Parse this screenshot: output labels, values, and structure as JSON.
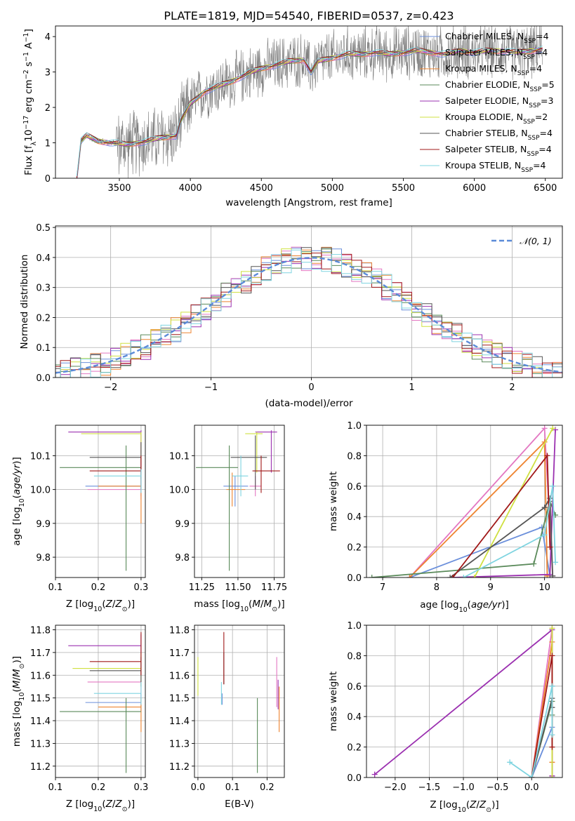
{
  "figure_title": "PLATE=1819, MJD=54540, FIBERID=0537, z=0.423",
  "colors": {
    "Chabrier MILES": "#6b8fdb",
    "Salpeter MILES": "#e377c2",
    "Kroupa MILES": "#ee8430",
    "Chabrier ELODIE": "#5a8a5a",
    "Salpeter ELODIE": "#9b30b0",
    "Kroupa ELODIE": "#cfe040",
    "Chabrier STELIB": "#555555",
    "Salpeter STELIB": "#a01818",
    "Kroupa STELIB": "#7fd4e0",
    "data": "#7a7a7a",
    "normal": "#5b8bd8"
  },
  "legend_top": [
    {
      "name": "Chabrier MILES",
      "label": "Chabrier MILES, N",
      "sub": "SSP",
      "tail": "=4"
    },
    {
      "name": "Salpeter MILES",
      "label": "Salpeter MILES, N",
      "sub": "SSP",
      "tail": "=4"
    },
    {
      "name": "Kroupa MILES",
      "label": "Kroupa MILES, N",
      "sub": "SSP",
      "tail": "=4"
    },
    {
      "name": "Chabrier ELODIE",
      "label": "Chabrier ELODIE, N",
      "sub": "SSP",
      "tail": "=5"
    },
    {
      "name": "Salpeter ELODIE",
      "label": "Salpeter ELODIE, N",
      "sub": "SSP",
      "tail": "=3"
    },
    {
      "name": "Kroupa ELODIE",
      "label": "Kroupa ELODIE, N",
      "sub": "SSP",
      "tail": "=2"
    },
    {
      "name": "Chabrier STELIB",
      "label": "Chabrier STELIB, N",
      "sub": "SSP",
      "tail": "=4"
    },
    {
      "name": "Salpeter STELIB",
      "label": "Salpeter STELIB, N",
      "sub": "SSP",
      "tail": "=4"
    },
    {
      "name": "Kroupa STELIB",
      "label": "Kroupa STELIB, N",
      "sub": "SSP",
      "tail": "=4"
    }
  ],
  "chart_data": [
    {
      "id": "spectrum",
      "type": "line",
      "xlabel": "wavelength [Angstrom, rest frame]",
      "ylabel": "Flux [fλ 10⁻¹⁷ erg cm⁻² s⁻¹ A⁻¹]",
      "xlim": [
        3050,
        6620
      ],
      "ylim": [
        0,
        4.3
      ],
      "xticks": [
        3500,
        4000,
        4500,
        5000,
        5500,
        6000,
        6500
      ],
      "yticks": [
        0,
        1,
        2,
        3,
        4
      ],
      "model_continuum": {
        "x": [
          3200,
          3230,
          3270,
          3350,
          3450,
          3550,
          3700,
          3800,
          3900,
          3930,
          4000,
          4100,
          4200,
          4300,
          4400,
          4500,
          4600,
          4700,
          4800,
          4850,
          4900,
          5000,
          5100,
          5200,
          5300,
          5400,
          5500,
          5600,
          5700,
          5800,
          5900,
          6000,
          6100,
          6200,
          6300,
          6400,
          6480
        ],
        "y": [
          0.0,
          1.05,
          1.2,
          1.05,
          1.0,
          0.95,
          1.05,
          1.15,
          1.2,
          1.6,
          2.1,
          2.45,
          2.6,
          2.75,
          2.95,
          3.1,
          3.2,
          3.3,
          3.35,
          3.0,
          3.3,
          3.4,
          3.5,
          3.5,
          3.55,
          3.5,
          3.55,
          3.6,
          3.55,
          3.5,
          3.6,
          3.55,
          3.6,
          3.6,
          3.55,
          3.6,
          3.65
        ]
      },
      "data_range": [
        3200,
        6480
      ]
    },
    {
      "id": "residuals",
      "type": "histogram",
      "xlabel": "(data-model)/error",
      "ylabel": "Normed distribution",
      "xlim": [
        -2.55,
        2.5
      ],
      "ylim": [
        0,
        0.505
      ],
      "xticks": [
        -2,
        -1,
        0,
        1,
        2
      ],
      "yticks": [
        0.0,
        0.1,
        0.2,
        0.3,
        0.4,
        0.5
      ],
      "legend": "𝒩(0, 1)"
    },
    {
      "id": "age_vs_Z",
      "type": "errorbar",
      "xlabel": "Z [log10(Z/Z⊙)]",
      "ylabel": "age  [log10(age/yr)]",
      "xlim": [
        0.1,
        0.31
      ],
      "ylim": [
        9.74,
        10.19
      ],
      "xticks": [
        0.1,
        0.2,
        0.3
      ],
      "yticks": [
        9.8,
        9.9,
        10.0,
        10.1
      ],
      "points": [
        {
          "model": "Chabrier MILES",
          "x": 0.3,
          "y": 10.01,
          "xerr": [
            0.17,
            0.3
          ],
          "yerr": [
            9.98,
            10.04
          ]
        },
        {
          "model": "Salpeter MILES",
          "x": 0.3,
          "y": 10.0,
          "xerr": [
            0.175,
            0.3
          ],
          "yerr": [
            9.97,
            10.17
          ]
        },
        {
          "model": "Kroupa MILES",
          "x": 0.3,
          "y": 10.01,
          "xerr": [
            0.2,
            0.3
          ],
          "yerr": [
            9.9,
            10.14
          ]
        },
        {
          "model": "Chabrier ELODIE",
          "x": 0.265,
          "y": 10.065,
          "xerr": [
            0.11,
            0.3
          ],
          "yerr": [
            9.76,
            10.13
          ]
        },
        {
          "model": "Salpeter ELODIE",
          "x": 0.3,
          "y": 10.17,
          "xerr": [
            0.13,
            0.3
          ],
          "yerr": [
            10.05,
            10.175
          ]
        },
        {
          "model": "Kroupa ELODIE",
          "x": 0.3,
          "y": 10.165,
          "xerr": [
            0.16,
            0.3
          ],
          "yerr": [
            10.08,
            10.17
          ]
        },
        {
          "model": "Chabrier STELIB",
          "x": 0.3,
          "y": 10.095,
          "xerr": [
            0.18,
            0.3
          ],
          "yerr": [
            10.03,
            10.14
          ]
        },
        {
          "model": "Salpeter STELIB",
          "x": 0.3,
          "y": 10.055,
          "xerr": [
            0.18,
            0.3
          ],
          "yerr": [
            10.0,
            10.1
          ]
        },
        {
          "model": "Kroupa STELIB",
          "x": 0.3,
          "y": 10.04,
          "xerr": [
            0.19,
            0.3
          ],
          "yerr": [
            9.99,
            10.06
          ]
        }
      ]
    },
    {
      "id": "age_vs_mass",
      "type": "errorbar",
      "xlabel": "mass [log10(M/M⊙)]",
      "xlim": [
        11.2,
        11.82
      ],
      "ylim": [
        9.74,
        10.19
      ],
      "xticks": [
        11.25,
        11.5,
        11.75
      ],
      "yticks": [
        9.8,
        9.9,
        10.0,
        10.1
      ],
      "points": [
        {
          "model": "Chabrier MILES",
          "x": 11.48,
          "y": 10.01,
          "xerr": [
            11.4,
            11.57
          ],
          "yerr": [
            9.95,
            10.04
          ]
        },
        {
          "model": "Salpeter MILES",
          "x": 11.62,
          "y": 10.01,
          "xerr": [
            11.58,
            11.66
          ],
          "yerr": [
            9.98,
            10.04
          ]
        },
        {
          "model": "Kroupa MILES",
          "x": 11.46,
          "y": 10.0,
          "xerr": [
            11.42,
            11.55
          ],
          "yerr": [
            9.95,
            10.05
          ]
        },
        {
          "model": "Chabrier ELODIE",
          "x": 11.44,
          "y": 10.065,
          "xerr": [
            11.21,
            11.5
          ],
          "yerr": [
            9.76,
            10.13
          ]
        },
        {
          "model": "Salpeter ELODIE",
          "x": 11.73,
          "y": 10.17,
          "xerr": [
            11.62,
            11.77
          ],
          "yerr": [
            10.05,
            10.175
          ]
        },
        {
          "model": "Kroupa ELODIE",
          "x": 11.63,
          "y": 10.165,
          "xerr": [
            11.55,
            11.67
          ],
          "yerr": [
            10.05,
            10.17
          ]
        },
        {
          "model": "Chabrier STELIB",
          "x": 11.62,
          "y": 10.095,
          "xerr": [
            11.45,
            11.7
          ],
          "yerr": [
            10.0,
            10.16
          ]
        },
        {
          "model": "Salpeter STELIB",
          "x": 11.66,
          "y": 10.055,
          "xerr": [
            11.6,
            11.79
          ],
          "yerr": [
            9.99,
            10.1
          ]
        },
        {
          "model": "Kroupa STELIB",
          "x": 11.52,
          "y": 10.04,
          "xerr": [
            11.46,
            11.57
          ],
          "yerr": [
            9.98,
            10.1
          ]
        }
      ]
    },
    {
      "id": "weight_vs_age",
      "type": "line",
      "xlabel": "age  [log10(age/yr)]",
      "ylabel": "mass weight",
      "xlim": [
        6.7,
        10.33
      ],
      "ylim": [
        0,
        1.0
      ],
      "xticks": [
        7,
        8,
        9,
        10
      ],
      "yticks": [
        0.0,
        0.2,
        0.4,
        0.6,
        0.8,
        1.0
      ],
      "series": [
        {
          "model": "Chabrier MILES",
          "x": [
            7.5,
            9.95,
            10.1
          ],
          "y": [
            0.0,
            0.33,
            0.01
          ]
        },
        {
          "model": "Salpeter MILES",
          "x": [
            7.5,
            10.0,
            10.15
          ],
          "y": [
            0.0,
            0.98,
            0.01
          ]
        },
        {
          "model": "Kroupa MILES",
          "x": [
            7.5,
            10.0,
            10.05
          ],
          "y": [
            0.0,
            0.89,
            0.01
          ]
        },
        {
          "model": "Chabrier ELODIE",
          "x": [
            6.8,
            9.8,
            10.1,
            10.2
          ],
          "y": [
            0.0,
            0.09,
            0.5,
            0.41
          ]
        },
        {
          "model": "Salpeter ELODIE",
          "x": [
            8.3,
            10.1,
            10.2
          ],
          "y": [
            0.0,
            0.02,
            0.97
          ]
        },
        {
          "model": "Kroupa ELODIE",
          "x": [
            8.7,
            10.15
          ],
          "y": [
            0.0,
            0.98
          ]
        },
        {
          "model": "Chabrier STELIB",
          "x": [
            8.25,
            10.0,
            10.1,
            10.15
          ],
          "y": [
            0.0,
            0.46,
            0.52,
            0.01
          ]
        },
        {
          "model": "Salpeter STELIB",
          "x": [
            8.3,
            10.05,
            10.1
          ],
          "y": [
            0.0,
            0.8,
            0.2
          ]
        },
        {
          "model": "Kroupa STELIB",
          "x": [
            8.5,
            10.0,
            10.15,
            10.2
          ],
          "y": [
            0.0,
            0.28,
            0.6,
            0.1
          ]
        }
      ]
    },
    {
      "id": "mass_vs_Z",
      "type": "errorbar",
      "xlabel": "Z [log10(Z/Z⊙)]",
      "ylabel": "mass [log10(M/M⊙)]",
      "xlim": [
        0.1,
        0.31
      ],
      "ylim": [
        11.15,
        11.82
      ],
      "xticks": [
        0.1,
        0.2,
        0.3
      ],
      "yticks": [
        11.2,
        11.3,
        11.4,
        11.5,
        11.6,
        11.7,
        11.8
      ],
      "points": [
        {
          "model": "Chabrier MILES",
          "x": 0.3,
          "y": 11.48,
          "xerr": [
            0.17,
            0.3
          ],
          "yerr": [
            11.44,
            11.52
          ]
        },
        {
          "model": "Salpeter MILES",
          "x": 0.3,
          "y": 11.57,
          "xerr": [
            0.175,
            0.3
          ],
          "yerr": [
            11.5,
            11.63
          ]
        },
        {
          "model": "Kroupa MILES",
          "x": 0.3,
          "y": 11.46,
          "xerr": [
            0.2,
            0.3
          ],
          "yerr": [
            11.35,
            11.5
          ]
        },
        {
          "model": "Chabrier ELODIE",
          "x": 0.265,
          "y": 11.44,
          "xerr": [
            0.11,
            0.3
          ],
          "yerr": [
            11.17,
            11.5
          ]
        },
        {
          "model": "Salpeter ELODIE",
          "x": 0.3,
          "y": 11.73,
          "xerr": [
            0.13,
            0.3
          ],
          "yerr": [
            11.6,
            11.78
          ]
        },
        {
          "model": "Kroupa ELODIE",
          "x": 0.3,
          "y": 11.63,
          "xerr": [
            0.14,
            0.3
          ],
          "yerr": [
            11.55,
            11.7
          ]
        },
        {
          "model": "Chabrier STELIB",
          "x": 0.3,
          "y": 11.62,
          "xerr": [
            0.18,
            0.3
          ],
          "yerr": [
            11.55,
            11.68
          ]
        },
        {
          "model": "Salpeter STELIB",
          "x": 0.3,
          "y": 11.66,
          "xerr": [
            0.18,
            0.3
          ],
          "yerr": [
            11.6,
            11.79
          ]
        },
        {
          "model": "Kroupa STELIB",
          "x": 0.3,
          "y": 11.52,
          "xerr": [
            0.19,
            0.3
          ],
          "yerr": [
            11.47,
            11.57
          ]
        }
      ]
    },
    {
      "id": "mass_vs_EBV",
      "type": "errorbar",
      "xlabel": "E(B-V)",
      "xlim": [
        -0.01,
        0.25
      ],
      "ylim": [
        11.15,
        11.82
      ],
      "xticks": [
        0.0,
        0.1,
        0.2
      ],
      "yticks": [
        11.2,
        11.3,
        11.4,
        11.5,
        11.6,
        11.7,
        11.8
      ],
      "points": [
        {
          "model": "Chabrier MILES",
          "x": 0.07,
          "y": 11.48,
          "yerr": [
            11.47,
            11.52
          ]
        },
        {
          "model": "Salpeter MILES",
          "x": 0.228,
          "y": 11.57,
          "yerr": [
            11.46,
            11.68
          ]
        },
        {
          "model": "Kroupa MILES",
          "x": 0.235,
          "y": 11.46,
          "yerr": [
            11.35,
            11.55
          ]
        },
        {
          "model": "Chabrier ELODIE",
          "x": 0.172,
          "y": 11.44,
          "yerr": [
            11.17,
            11.5
          ]
        },
        {
          "model": "Salpeter ELODIE",
          "x": 0.232,
          "y": 11.5,
          "yerr": [
            11.45,
            11.58
          ]
        },
        {
          "model": "Kroupa ELODIE",
          "x": 0.0,
          "y": 11.6,
          "yerr": [
            11.51,
            11.68
          ]
        },
        {
          "model": "Chabrier STELIB",
          "x": 0.075,
          "y": 11.62,
          "yerr": [
            11.56,
            11.7
          ]
        },
        {
          "model": "Salpeter STELIB",
          "x": 0.075,
          "y": 11.66,
          "yerr": [
            11.56,
            11.79
          ]
        },
        {
          "model": "Kroupa STELIB",
          "x": 0.068,
          "y": 11.52,
          "yerr": [
            11.47,
            11.57
          ]
        }
      ]
    },
    {
      "id": "weight_vs_Z",
      "type": "line",
      "xlabel": "Z [log10(Z/Z⊙)]",
      "ylabel": "mass weight",
      "xlim": [
        -2.42,
        0.45
      ],
      "ylim": [
        0,
        1.0
      ],
      "xticks": [
        -2.0,
        -1.5,
        -1.0,
        -0.5,
        0.0
      ],
      "yticks": [
        0.0,
        0.2,
        0.4,
        0.6,
        0.8,
        1.0
      ],
      "series": [
        {
          "model": "Chabrier MILES",
          "x": [
            0.0,
            0.3,
            0.3
          ],
          "y": [
            0.0,
            0.33,
            0.6
          ]
        },
        {
          "model": "Salpeter MILES",
          "x": [
            0.0,
            0.3,
            0.3
          ],
          "y": [
            0.0,
            0.98,
            0.01
          ]
        },
        {
          "model": "Kroupa MILES",
          "x": [
            0.0,
            0.3,
            0.3
          ],
          "y": [
            0.0,
            0.89,
            0.1
          ]
        },
        {
          "model": "Chabrier ELODIE",
          "x": [
            0.0,
            0.3,
            0.3
          ],
          "y": [
            0.0,
            0.5,
            0.41
          ]
        },
        {
          "model": "Salpeter ELODIE",
          "x": [
            -2.3,
            0.3,
            0.3
          ],
          "y": [
            0.02,
            0.97,
            0.01
          ]
        },
        {
          "model": "Kroupa ELODIE",
          "x": [
            0.3,
            0.3
          ],
          "y": [
            0.0,
            0.98
          ]
        },
        {
          "model": "Chabrier STELIB",
          "x": [
            0.0,
            0.3,
            0.3
          ],
          "y": [
            0.0,
            0.52,
            0.46
          ]
        },
        {
          "model": "Salpeter STELIB",
          "x": [
            0.0,
            0.3,
            0.3
          ],
          "y": [
            0.0,
            0.8,
            0.2
          ]
        },
        {
          "model": "Kroupa STELIB",
          "x": [
            -0.32,
            0.0,
            0.3,
            0.3
          ],
          "y": [
            0.1,
            0.0,
            0.6,
            0.28
          ]
        }
      ]
    }
  ]
}
